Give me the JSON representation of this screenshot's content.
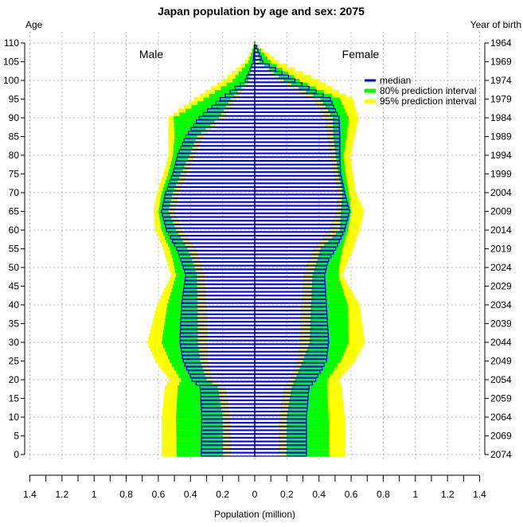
{
  "chart_data": {
    "type": "bar",
    "subtype": "population-pyramid",
    "title": "Japan population by age and sex: 2075",
    "xlabel": "Population (million)",
    "ylabel_left": "Age",
    "ylabel_right": "Year of birth",
    "xlim": [
      -1.4,
      1.4
    ],
    "ylim": [
      0,
      110
    ],
    "x_ticks": [
      "1.4",
      "1.2",
      "1",
      "0.8",
      "0.6",
      "0.4",
      "0.2",
      "0",
      "0.2",
      "0.4",
      "0.6",
      "0.8",
      "1",
      "1.2",
      "1.4"
    ],
    "age_ticks": [
      "0",
      "5",
      "10",
      "15",
      "20",
      "25",
      "30",
      "35",
      "40",
      "45",
      "50",
      "55",
      "60",
      "65",
      "70",
      "75",
      "80",
      "85",
      "90",
      "95",
      "100",
      "105",
      "110"
    ],
    "birth_year_ticks": [
      "2074",
      "2069",
      "2064",
      "2059",
      "2054",
      "2049",
      "2044",
      "2039",
      "2034",
      "2029",
      "2024",
      "2019",
      "2014",
      "2009",
      "2004",
      "1999",
      "1994",
      "1989",
      "1984",
      "1979",
      "1974",
      "1969",
      "1964"
    ],
    "grid": true,
    "side_labels": {
      "male": "Male",
      "female": "Female"
    },
    "legend": {
      "position": "top-right",
      "entries": [
        {
          "label": "median",
          "color": "#0000ff"
        },
        {
          "label": "80% prediction interval",
          "color": "#00ff00"
        },
        {
          "label": "95% prediction interval",
          "color": "#ffff00"
        }
      ]
    },
    "key_ages": [
      0,
      10,
      18,
      20,
      25,
      30,
      40,
      48,
      52,
      55,
      60,
      65,
      70,
      75,
      80,
      85,
      90,
      95,
      100,
      105,
      110
    ],
    "male": {
      "median": [
        0.333,
        0.33,
        0.34,
        0.39,
        0.446,
        0.466,
        0.456,
        0.43,
        0.46,
        0.487,
        0.55,
        0.58,
        0.555,
        0.51,
        0.48,
        0.43,
        0.347,
        0.215,
        0.06,
        0.01,
        0
      ],
      "lower95": [
        0.144,
        0.15,
        0.18,
        0.26,
        0.29,
        0.29,
        0.297,
        0.31,
        0.34,
        0.363,
        0.45,
        0.496,
        0.47,
        0.42,
        0.372,
        0.32,
        0.19,
        0.115,
        0.025,
        0.003,
        0
      ],
      "lower80": [
        0.198,
        0.2,
        0.23,
        0.3,
        0.34,
        0.355,
        0.357,
        0.36,
        0.39,
        0.42,
        0.49,
        0.537,
        0.51,
        0.46,
        0.406,
        0.36,
        0.223,
        0.15,
        0.04,
        0.006,
        0
      ],
      "upper80": [
        0.487,
        0.49,
        0.48,
        0.46,
        0.53,
        0.58,
        0.545,
        0.49,
        0.51,
        0.53,
        0.58,
        0.6,
        0.58,
        0.54,
        0.51,
        0.5,
        0.505,
        0.32,
        0.14,
        0.04,
        0
      ],
      "upper95": [
        0.58,
        0.58,
        0.56,
        0.53,
        0.62,
        0.67,
        0.61,
        0.52,
        0.55,
        0.57,
        0.62,
        0.63,
        0.61,
        0.57,
        0.537,
        0.54,
        0.537,
        0.38,
        0.2,
        0.06,
        0
      ]
    },
    "female": {
      "median": [
        0.322,
        0.322,
        0.338,
        0.38,
        0.446,
        0.46,
        0.446,
        0.435,
        0.46,
        0.504,
        0.56,
        0.59,
        0.56,
        0.535,
        0.53,
        0.53,
        0.525,
        0.47,
        0.25,
        0.05,
        0
      ],
      "lower95": [
        0.145,
        0.15,
        0.18,
        0.22,
        0.26,
        0.277,
        0.288,
        0.3,
        0.33,
        0.363,
        0.46,
        0.504,
        0.52,
        0.49,
        0.47,
        0.45,
        0.436,
        0.36,
        0.15,
        0.02,
        0
      ],
      "lower80": [
        0.198,
        0.2,
        0.23,
        0.25,
        0.3,
        0.342,
        0.35,
        0.36,
        0.39,
        0.41,
        0.53,
        0.537,
        0.545,
        0.52,
        0.504,
        0.49,
        0.486,
        0.41,
        0.18,
        0.03,
        0
      ],
      "upper80": [
        0.46,
        0.46,
        0.45,
        0.45,
        0.53,
        0.585,
        0.578,
        0.52,
        0.53,
        0.545,
        0.58,
        0.6,
        0.585,
        0.565,
        0.553,
        0.57,
        0.585,
        0.53,
        0.28,
        0.1,
        0
      ],
      "upper95": [
        0.56,
        0.56,
        0.54,
        0.52,
        0.62,
        0.684,
        0.652,
        0.545,
        0.58,
        0.61,
        0.65,
        0.68,
        0.628,
        0.61,
        0.595,
        0.62,
        0.645,
        0.61,
        0.4,
        0.15,
        0
      ]
    }
  }
}
